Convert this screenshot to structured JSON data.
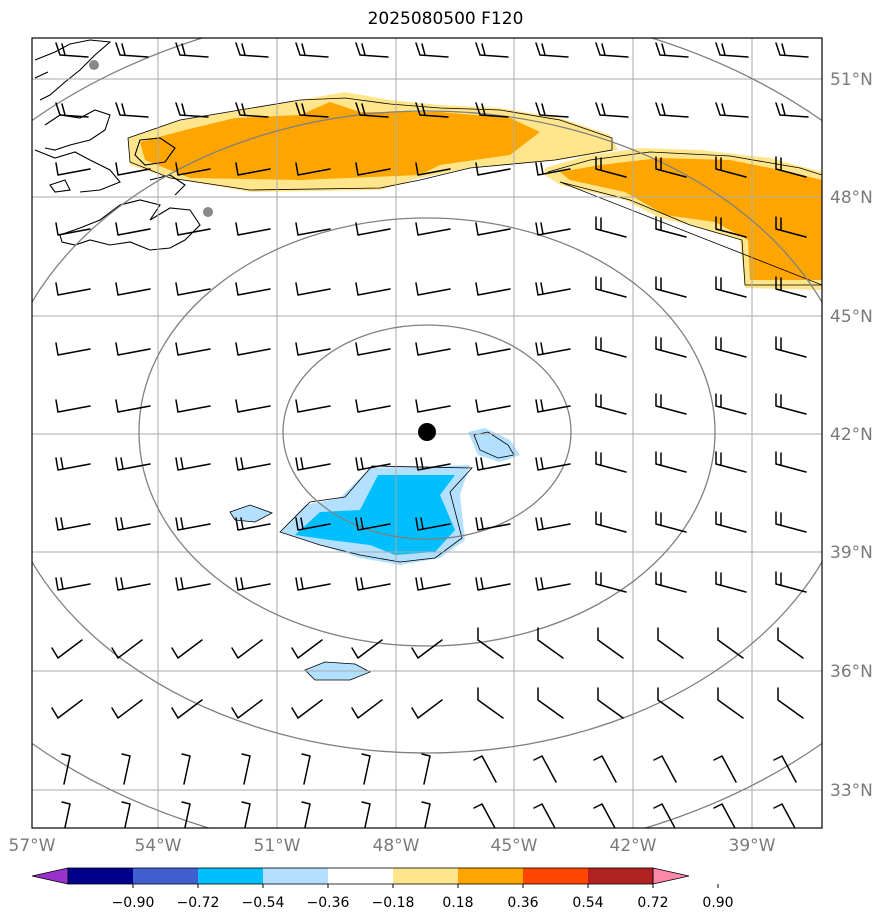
{
  "title": "2025080500 F120",
  "map": {
    "lon_range": [
      -57,
      -37.7
    ],
    "lat_range": [
      31.9,
      52.2
    ],
    "longitude_labels": [
      "57°W",
      "54°W",
      "51°W",
      "48°W",
      "45°W",
      "42°W",
      "39°W"
    ],
    "latitude_labels": [
      "51°N",
      "48°N",
      "45°N",
      "42°N",
      "39°N",
      "36°N",
      "33°N"
    ],
    "center_marker": {
      "lon": -47.3,
      "lat": 42.0,
      "color": "#000000"
    },
    "range_rings": "concentric circles around center marker",
    "colors": {
      "positive_shading_light": "#ffe68c",
      "positive_shading": "#ffa500",
      "negative_shading_light": "#b4e0ff",
      "negative_shading": "#00bfff",
      "gridline": "#aaaaaa",
      "ring": "#808080"
    }
  },
  "colorbar": {
    "tick_labels": [
      "−0.90",
      "−0.72",
      "−0.54",
      "−0.36",
      "−0.18",
      "0.18",
      "0.36",
      "0.54",
      "0.72",
      "0.90"
    ],
    "colors": [
      "#9932cc",
      "#00008b",
      "#4060d0",
      "#00bfff",
      "#b4e0ff",
      "#ffffff",
      "#ffe68c",
      "#ffa500",
      "#ff4500",
      "#b22222",
      "#ff88aa"
    ]
  }
}
